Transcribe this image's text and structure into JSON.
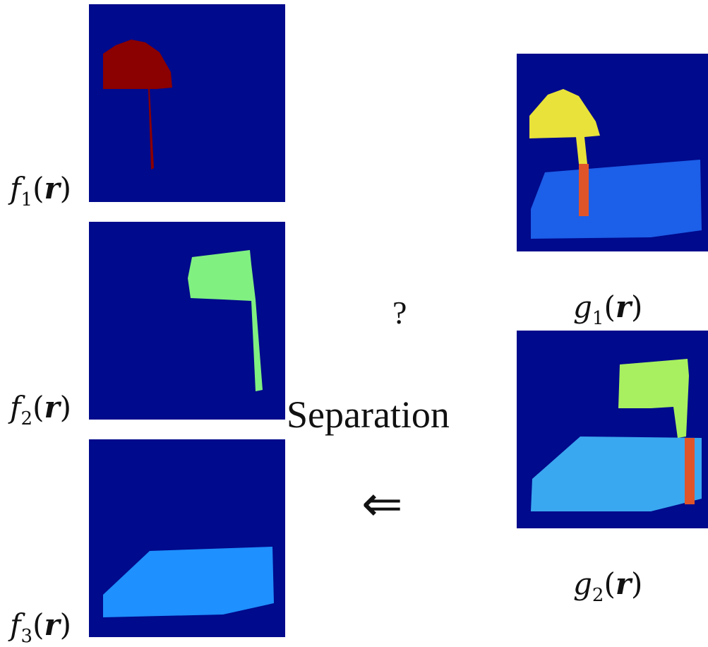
{
  "left_panels": [
    {
      "fn": "f",
      "sub": "1",
      "arg": "r",
      "object": "mushroom",
      "object_color": "#8b0000"
    },
    {
      "fn": "f",
      "sub": "2",
      "arg": "r",
      "object": "flag",
      "object_color": "#80f080"
    },
    {
      "fn": "f",
      "sub": "3",
      "arg": "r",
      "object": "slab",
      "object_color": "#1e90ff"
    }
  ],
  "right_panels": [
    {
      "fn": "g",
      "sub": "1",
      "arg": "r"
    },
    {
      "fn": "g",
      "sub": "2",
      "arg": "r"
    }
  ],
  "center": {
    "question": "?",
    "label": "Separation",
    "arrow": "⇐"
  },
  "colors": {
    "background_field": "#000a8c",
    "mixture_noise_field": "#1c5fe8",
    "mixture_yellow": "#e8e23a",
    "mixture_orange": "#e0542a",
    "mixture_green": "#a8f060"
  }
}
